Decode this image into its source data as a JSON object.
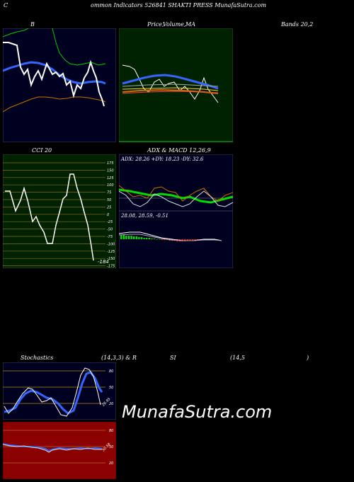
{
  "header": {
    "title_left": "C",
    "title_mid": "ommon  Indicators 526841 SHAKTI PRESS MunafaSutra.com"
  },
  "bb": {
    "label": "B",
    "bands_label": "Bands 20,2"
  },
  "ma": {
    "label_price": "Price,",
    "label_volume": "Volume,",
    "label_ma": "MA"
  },
  "cci": {
    "label": "CCI 20",
    "value_label": "-184",
    "ticks": [
      "175",
      "150",
      "125",
      "100",
      "75",
      "50",
      "25",
      "0",
      "-25",
      "-50",
      "-75",
      "-100",
      "-125",
      "-150",
      "-175"
    ]
  },
  "adx": {
    "label": "ADX  & MACD 12,26,9",
    "readout": "ADX: 28.26  +DY: 18.23 -DY: 32.6",
    "macd_readout": "28.08,  28.59,  -0.51"
  },
  "stoch": {
    "label_left": "Stochastics",
    "label_params": "(14,3,3) & R",
    "label_si": "SI",
    "label_rsi_params": "(14,5",
    "label_close": ")",
    "ticks": [
      "80",
      "50",
      "20"
    ],
    "value_label": "25.95"
  },
  "rsi": {
    "ticks": [
      "80",
      "50",
      "20"
    ],
    "value_label": "30.58"
  },
  "brand": {
    "text": "MunafaSutra.com"
  },
  "colors": {
    "panel_blue_bg": "#000020",
    "ma_bg": "#002200",
    "cci_bg": "#002200",
    "rsi_bg": "#8b0000",
    "band_blue": "#3366ff",
    "green": "#00cc00",
    "orange": "#cc7000",
    "grid_line": "#8b6914"
  }
}
